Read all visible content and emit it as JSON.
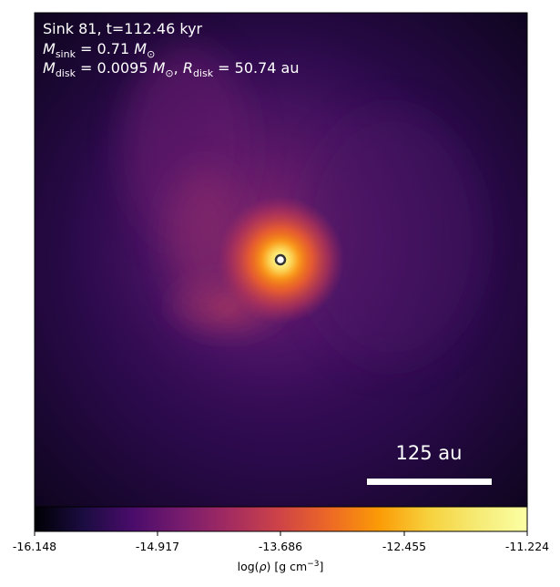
{
  "annotations": {
    "line1": "Sink 81, t=112.46 kyr",
    "line2_prefix": "M",
    "line2_sub": "sink",
    "line2_mid": " = 0.71 ",
    "line2_unit": "M",
    "line2_unit_sub": "⊙",
    "line3_prefix": "M",
    "line3_sub": "disk",
    "line3_mid": " = 0.0095 ",
    "line3_unit": "M",
    "line3_unit_sub": "⊙",
    "line3_sep": ", ",
    "line3_r": "R",
    "line3_r_sub": "disk",
    "line3_r_val": " = 50.74 au"
  },
  "scale_bar": {
    "label": "125 au"
  },
  "colorbar": {
    "ticks": [
      "-16.148",
      "-14.917",
      "-13.686",
      "-12.455",
      "-11.224"
    ],
    "label_prefix": "log(",
    "label_rho": "ρ",
    "label_mid": ") [g cm",
    "label_sup": "−3",
    "label_suffix": "]",
    "colormap": "inferno",
    "range": [
      -16.148,
      -11.224
    ]
  },
  "colors": {
    "bar_white": "#ffffff",
    "sink_marker_edge": "#333333",
    "sink_marker_fill": "#ffffff"
  }
}
